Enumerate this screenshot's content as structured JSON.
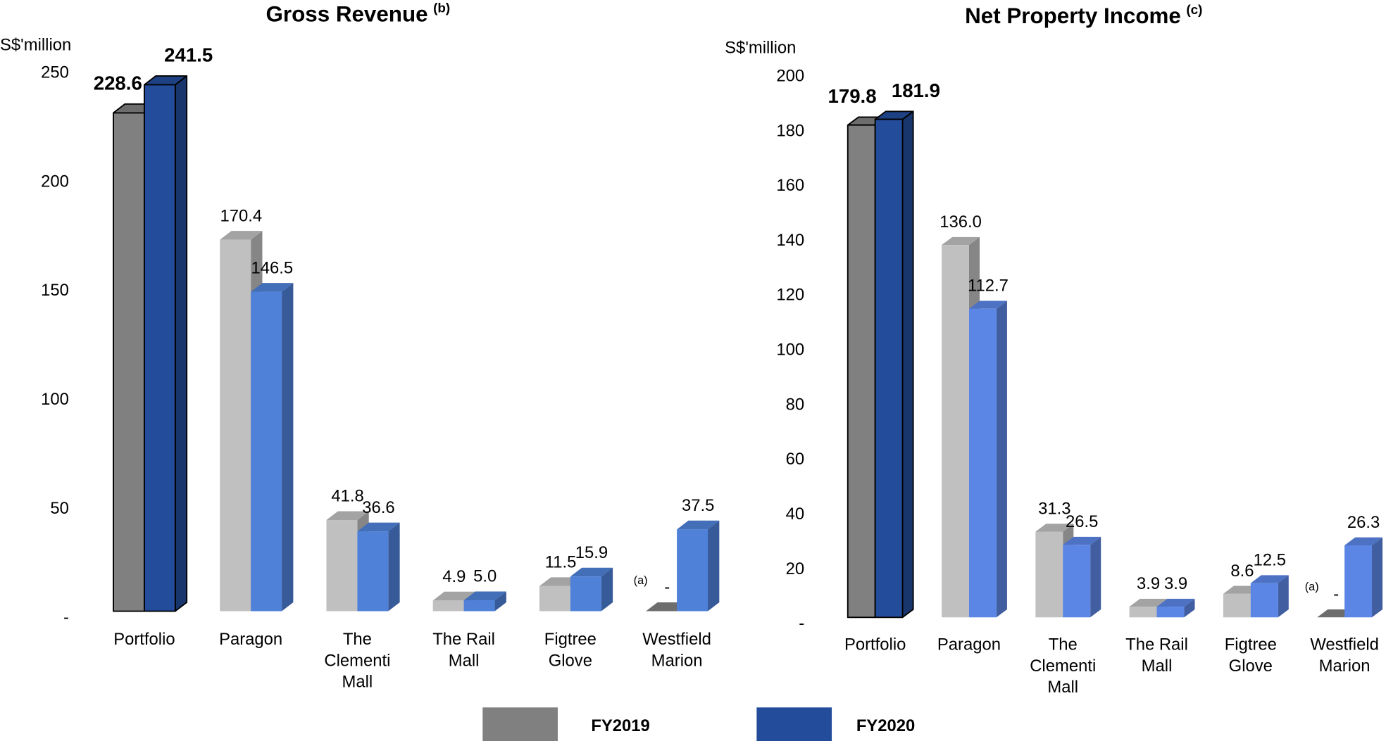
{
  "chart_data": [
    {
      "type": "bar3d",
      "title": "Gross Revenue",
      "title_note": "(b)",
      "y_label": "S$'million",
      "categories": [
        [
          "Portfolio"
        ],
        [
          "Paragon"
        ],
        [
          "The",
          "Clementi",
          "Mall"
        ],
        [
          "The Rail",
          "Mall"
        ],
        [
          "Figtree",
          "Glove"
        ],
        [
          "Westfield",
          "Marion"
        ]
      ],
      "series": [
        {
          "name": "FY2019",
          "color": "#808080",
          "point_colors": [
            "#808080",
            "#c0c0c0",
            "#c0c0c0",
            "#c0c0c0",
            "#c0c0c0",
            "#808080"
          ],
          "values": [
            228.6,
            170.4,
            41.8,
            4.9,
            11.5,
            0
          ],
          "value_labels": [
            "228.6",
            "170.4",
            "41.8",
            "4.9",
            "11.5",
            "-"
          ]
        },
        {
          "name": "FY2020",
          "color": "#234d9a",
          "point_colors": [
            "#234d9a",
            "#4f81d9",
            "#4f81d9",
            "#4f81d9",
            "#4f81d9",
            "#4f81d9"
          ],
          "values": [
            241.5,
            146.5,
            36.6,
            5.0,
            15.9,
            37.5
          ],
          "value_labels": [
            "241.5",
            "146.5",
            "36.6",
            "5.0",
            "15.9",
            "37.5"
          ]
        }
      ],
      "annotations": [
        {
          "text": "(a)",
          "series": 0,
          "index": 5
        }
      ],
      "ylim": [
        0,
        250
      ],
      "yticks": [
        {
          "value": 0,
          "label": "-"
        },
        50,
        100,
        150,
        200,
        250
      ]
    },
    {
      "type": "bar3d",
      "title": "Net Property Income",
      "title_note": "(c)",
      "y_label": "S$'million",
      "categories": [
        [
          "Portfolio"
        ],
        [
          "Paragon"
        ],
        [
          "The",
          "Clementi",
          "Mall"
        ],
        [
          "The Rail",
          "Mall"
        ],
        [
          "Figtree",
          "Glove"
        ],
        [
          "Westfield",
          "Marion"
        ]
      ],
      "series": [
        {
          "name": "FY2019",
          "color": "#808080",
          "point_colors": [
            "#808080",
            "#c0c0c0",
            "#c0c0c0",
            "#c0c0c0",
            "#c0c0c0",
            "#808080"
          ],
          "values": [
            179.8,
            136.0,
            31.3,
            3.9,
            8.6,
            0
          ],
          "value_labels": [
            "179.8",
            "136.0",
            "31.3",
            "3.9",
            "8.6",
            "-"
          ]
        },
        {
          "name": "FY2020",
          "color": "#234d9a",
          "point_colors": [
            "#234d9a",
            "#5b86e5",
            "#5b86e5",
            "#5b86e5",
            "#5b86e5",
            "#5b86e5"
          ],
          "values": [
            181.9,
            112.7,
            26.5,
            3.9,
            12.5,
            26.3
          ],
          "value_labels": [
            "181.9",
            "112.7",
            "26.5",
            "3.9",
            "12.5",
            "26.3"
          ]
        }
      ],
      "annotations": [
        {
          "text": "(a)",
          "series": 0,
          "index": 5
        }
      ],
      "ylim": [
        0,
        200
      ],
      "yticks": [
        {
          "value": 0,
          "label": "-"
        },
        20,
        40,
        60,
        80,
        100,
        120,
        140,
        160,
        180,
        200
      ]
    }
  ]
}
